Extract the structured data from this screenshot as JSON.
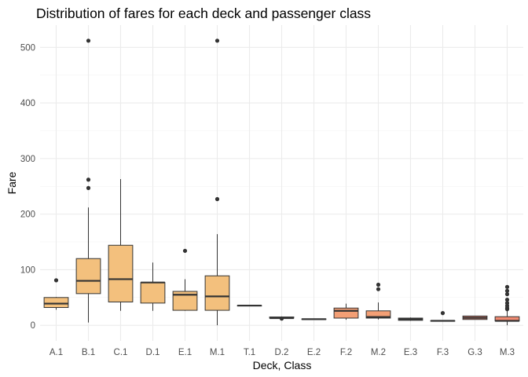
{
  "chart_data": {
    "type": "boxplot",
    "title": "Distribution of fares for each deck and passenger class",
    "xlabel": "Deck, Class",
    "ylabel": "Fare",
    "ylim": [
      -28,
      540
    ],
    "yticks": [
      0,
      100,
      200,
      300,
      400,
      500
    ],
    "grid": true,
    "colors": {
      "class1": "#f3c07d",
      "class2": "#f39f75",
      "class3": "#f08a72"
    },
    "categories": [
      "A.1",
      "B.1",
      "C.1",
      "D.1",
      "E.1",
      "M.1",
      "T.1",
      "D.2",
      "E.2",
      "F.2",
      "M.2",
      "E.3",
      "F.3",
      "G.3",
      "M.3"
    ],
    "boxes": [
      {
        "label": "A.1",
        "pclass": 1,
        "min": 28,
        "q1": 32,
        "median": 39,
        "q3": 50,
        "max": 51,
        "outliers": [
          81
        ]
      },
      {
        "label": "B.1",
        "pclass": 1,
        "min": 5,
        "q1": 57,
        "median": 80,
        "q3": 120,
        "max": 212,
        "outliers": [
          247,
          262,
          512
        ]
      },
      {
        "label": "C.1",
        "pclass": 1,
        "min": 26,
        "q1": 42,
        "median": 83,
        "q3": 144,
        "max": 263,
        "outliers": []
      },
      {
        "label": "D.1",
        "pclass": 1,
        "min": 26,
        "q1": 40,
        "median": 77,
        "q3": 77,
        "max": 113,
        "outliers": []
      },
      {
        "label": "E.1",
        "pclass": 1,
        "min": 26,
        "q1": 27,
        "median": 55,
        "q3": 61,
        "max": 83,
        "outliers": [
          134
        ]
      },
      {
        "label": "M.1",
        "pclass": 1,
        "min": 0,
        "q1": 27,
        "median": 52,
        "q3": 89,
        "max": 164,
        "outliers": [
          227,
          512
        ]
      },
      {
        "label": "T.1",
        "pclass": 1,
        "min": 35.5,
        "q1": 35.5,
        "median": 35.5,
        "q3": 35.5,
        "max": 35.5,
        "outliers": []
      },
      {
        "label": "D.2",
        "pclass": 2,
        "min": 13,
        "q1": 13,
        "median": 13,
        "q3": 15,
        "max": 16,
        "outliers": [
          12
        ]
      },
      {
        "label": "E.2",
        "pclass": 2,
        "min": 10.5,
        "q1": 10.5,
        "median": 11,
        "q3": 11.5,
        "max": 12,
        "outliers": []
      },
      {
        "label": "F.2",
        "pclass": 2,
        "min": 10,
        "q1": 13,
        "median": 26,
        "q3": 31,
        "max": 39,
        "outliers": []
      },
      {
        "label": "M.2",
        "pclass": 2,
        "min": 10.5,
        "q1": 13,
        "median": 15,
        "q3": 26,
        "max": 41,
        "outliers": [
          65,
          73
        ]
      },
      {
        "label": "E.3",
        "pclass": 3,
        "min": 8,
        "q1": 9,
        "median": 11,
        "q3": 13,
        "max": 14,
        "outliers": []
      },
      {
        "label": "F.3",
        "pclass": 3,
        "min": 7.5,
        "q1": 7.7,
        "median": 8,
        "q3": 8.2,
        "max": 8.5,
        "outliers": [
          22
        ]
      },
      {
        "label": "G.3",
        "pclass": 3,
        "min": 10.5,
        "q1": 10.5,
        "median": 13.5,
        "q3": 16.7,
        "max": 16.7,
        "outliers": []
      },
      {
        "label": "M.3",
        "pclass": 3,
        "min": 0,
        "q1": 7.8,
        "median": 8,
        "q3": 15.5,
        "max": 27,
        "outliers": [
          29,
          31,
          35,
          40,
          46,
          56,
          62,
          69
        ]
      }
    ]
  }
}
